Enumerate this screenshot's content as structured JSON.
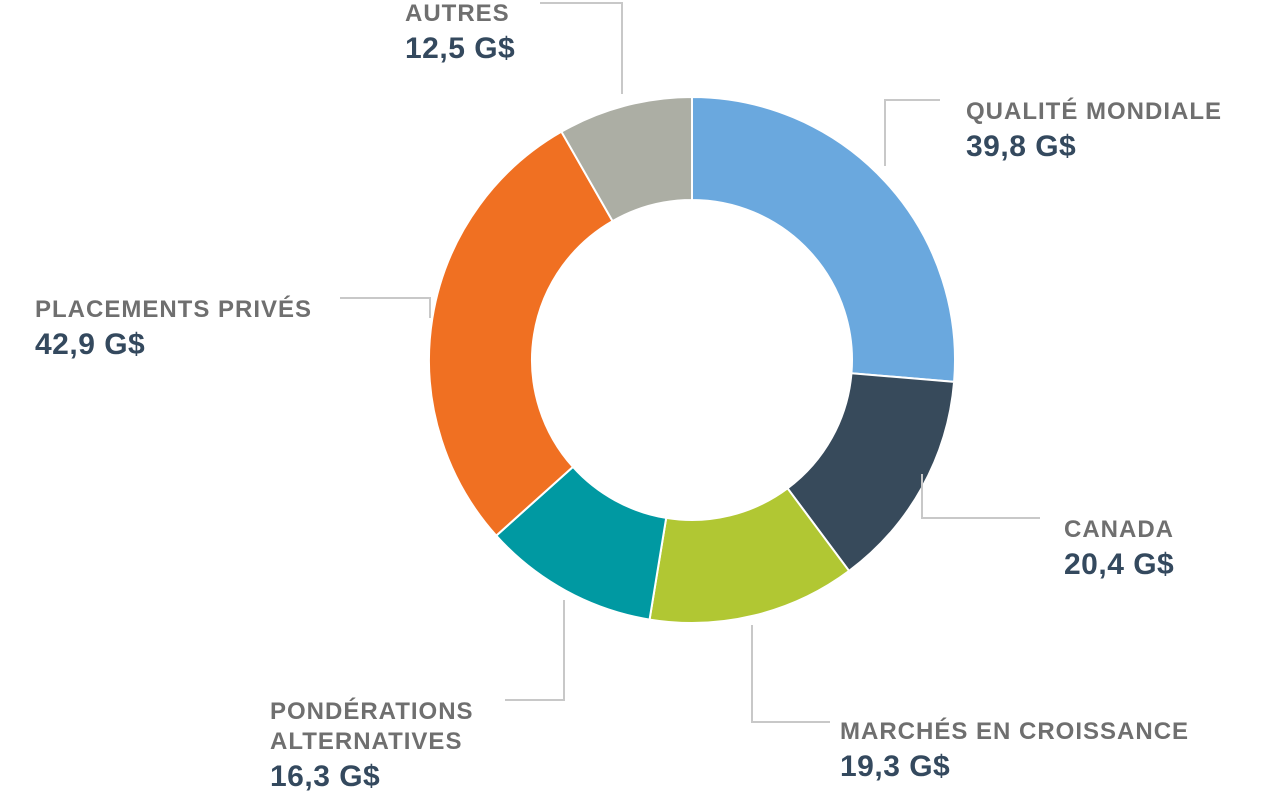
{
  "chart_data": {
    "type": "pie",
    "donut": true,
    "unit": "G$",
    "slices": [
      {
        "name": "QUALITÉ MONDIALE",
        "value": 39.8,
        "value_label": "39,8 G$",
        "color": "#6aa8de"
      },
      {
        "name": "CANADA",
        "value": 20.4,
        "value_label": "20,4 G$",
        "color": "#374a5b"
      },
      {
        "name": "MARCHÉS EN CROISSANCE",
        "value": 19.3,
        "value_label": "19,3 G$",
        "color": "#b1c733"
      },
      {
        "name_lines": [
          "PONDÉRATIONS",
          "ALTERNATIVES"
        ],
        "value": 16.3,
        "value_label": "16,3 G$",
        "color": "#0099a2"
      },
      {
        "name": "PLACEMENTS PRIVÉS",
        "value": 42.9,
        "value_label": "42,9 G$",
        "color": "#f07022"
      },
      {
        "name": "AUTRES",
        "value": 12.5,
        "value_label": "12,5 G$",
        "color": "#acaea4"
      }
    ],
    "leader_line_color": "#c8c8c8"
  }
}
